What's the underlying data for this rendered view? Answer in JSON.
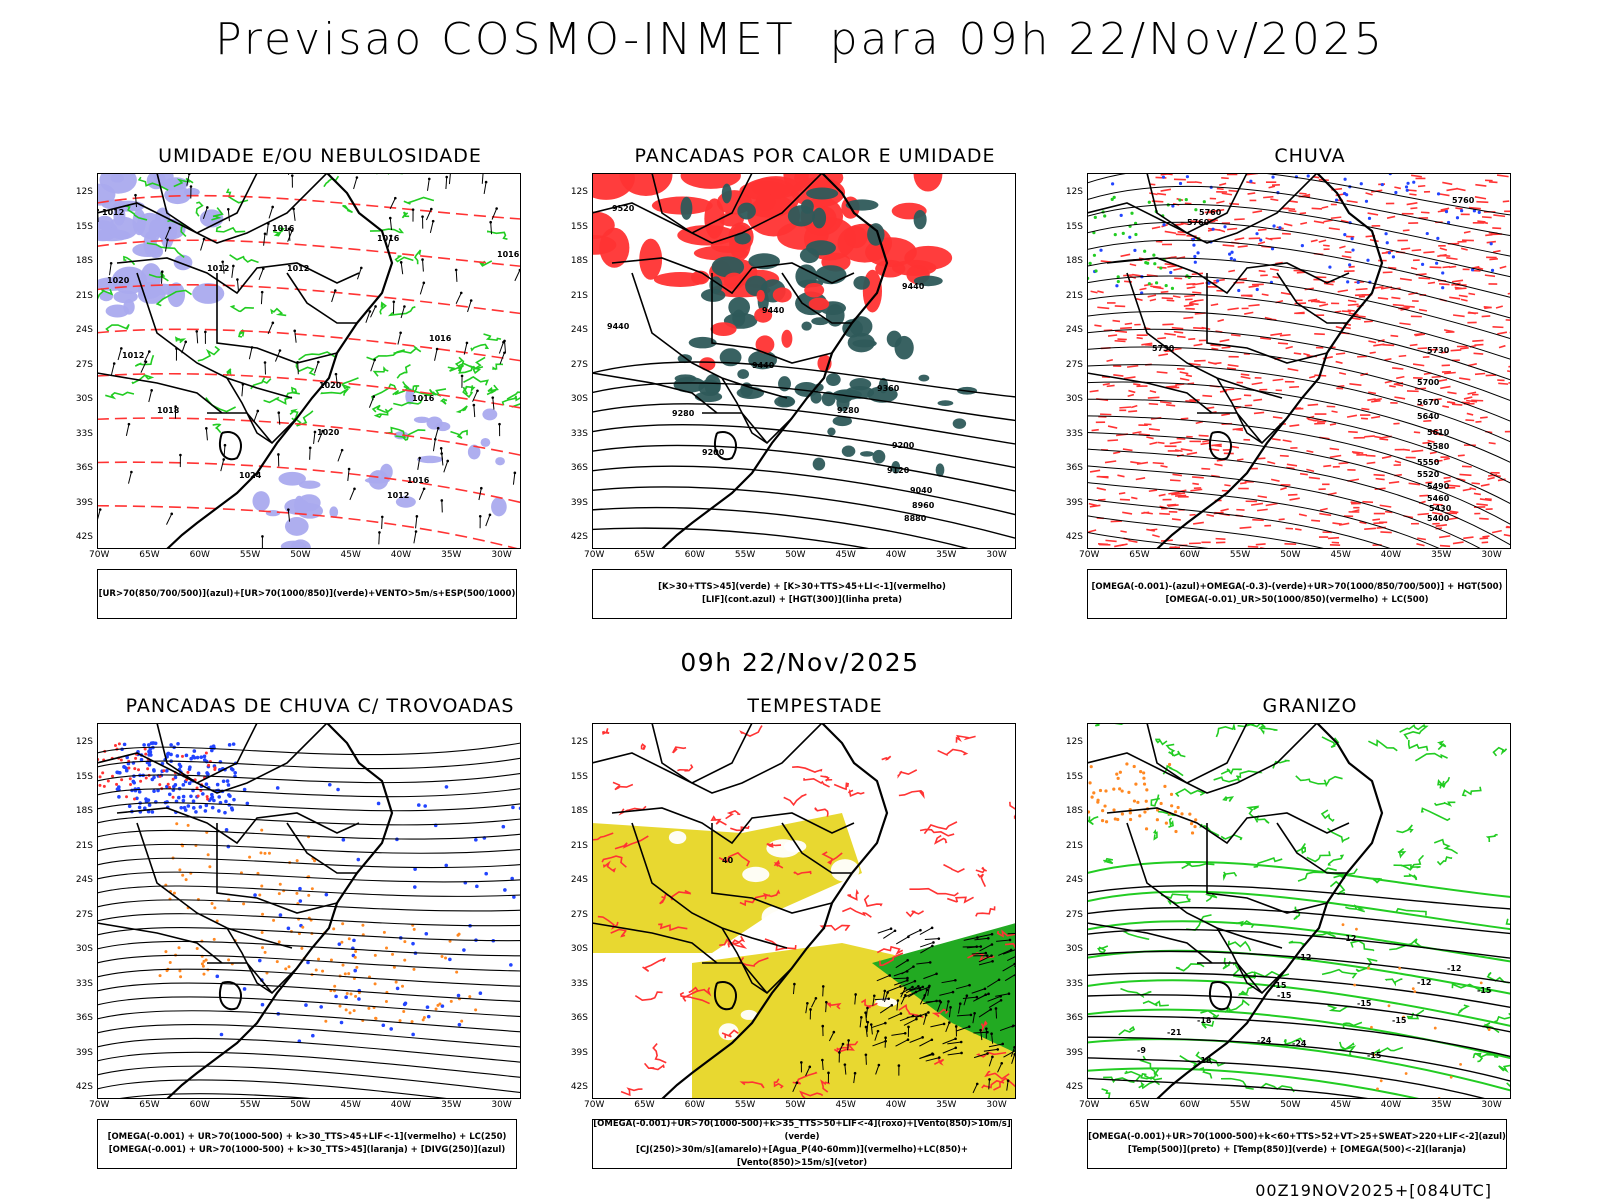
{
  "header": {
    "title": "Previsao COSMO-INMET  para 09h 22/Nov/2025"
  },
  "mid": {
    "title": "09h 22/Nov/2025"
  },
  "footer": {
    "run": "00Z19NOV2025+[084UTC]"
  },
  "axes": {
    "lat": [
      "12S",
      "15S",
      "18S",
      "21S",
      "24S",
      "27S",
      "30S",
      "33S",
      "36S",
      "39S",
      "42S"
    ],
    "lon": [
      "70W",
      "65W",
      "60W",
      "55W",
      "50W",
      "45W",
      "40W",
      "35W",
      "30W"
    ]
  },
  "colors": {
    "green": "#22cc22",
    "red": "#ff3333",
    "blue": "#2244ff",
    "lavender": "#aaaaee",
    "teal": "#2e5a5a",
    "yellow": "#e8d830",
    "orange": "#ff8822"
  },
  "panels": [
    {
      "title": "UMIDADE E/OU NEBULOSIDADE",
      "legend": [
        "[UR>70(850/700/500)](azul)+[UR>70(1000/850)](verde)+VENTO>5m/s+ESP(500/1000)"
      ],
      "labels": [
        "1012",
        "1016",
        "1012",
        "1012",
        "1016",
        "1016",
        "1016",
        "1020",
        "1024",
        "1016",
        "1012",
        "1020",
        "1012",
        "1020",
        "1016",
        "1018"
      ]
    },
    {
      "title": "PANCADAS POR CALOR E UMIDADE",
      "legend": [
        "[K>30+TTS>45](verde) + [K>30+TTS>45+LI<-1](vermelho)",
        "[LIF](cont.azul) + [HGT(300)](linha preta)"
      ],
      "labels": [
        "9520",
        "9440",
        "9440",
        "9440",
        "9360",
        "9280",
        "9280",
        "9200",
        "9120",
        "9040",
        "8960",
        "8880",
        "9200",
        "9440"
      ]
    },
    {
      "title": "CHUVA",
      "legend": [
        "[OMEGA(-0.001)-(azul)+OMEGA(-0.3)-(verde)+UR>70(1000/850/700/500)] + HGT(500)",
        "[OMEGA(-0.01)_UR>50(1000/850)(vermelho) + LC(500)"
      ],
      "labels": [
        "5760",
        "5760",
        "5760",
        "5730",
        "5730",
        "5700",
        "5670",
        "5640",
        "5610",
        "5580",
        "5550",
        "5520",
        "5490",
        "5460",
        "5430",
        "5400"
      ]
    },
    {
      "title": "PANCADAS DE CHUVA C/ TROVOADAS",
      "legend": [
        "[OMEGA(-0.001) + UR>70(1000-500) + k>30_TTS>45+LIF<-1](vermelho) + LC(250)",
        "[OMEGA(-0.001) + UR>70(1000-500) + k>30_TTS>45](laranja) + [DIVG(250)](azul)"
      ],
      "labels": []
    },
    {
      "title": "TEMPESTADE",
      "legend": [
        "[OMEGA(-0.001)+UR>70(1000-500)+k>35_TTS>50+LIF<-4](roxo)+[Vento(850)>10m/s](verde)",
        "[CJ(250)>30m/s](amarelo)+[Agua_P(40-60mm)](vermelho)+LC(850)+[Vento(850)>15m/s](vetor)"
      ],
      "labels": [
        "40"
      ]
    },
    {
      "title": "GRANIZO",
      "legend": [
        "[OMEGA(-0.001)+UR>70(1000-500)+k<60+TTS>52+VT>25+SWEAT>220+LIF<-2](azul)",
        "[Temp(500)](preto) + [Temp(850)](verde) + [OMEGA(500)<-2](laranja)"
      ],
      "labels": [
        "-12",
        "-12",
        "-15",
        "-15",
        "-18",
        "-24",
        "-21",
        "-15",
        "-15",
        "-15",
        "-24",
        "-18",
        "-12",
        "-12",
        "-15",
        "-9"
      ]
    }
  ]
}
